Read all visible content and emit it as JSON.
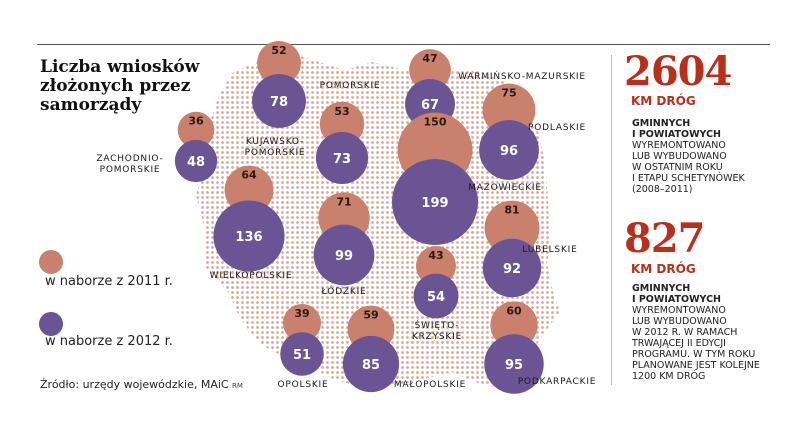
{
  "title": "Liczba wniosków\nzłożonych przez\nsamorządy",
  "colors": {
    "series_2011": "#c9806c",
    "series_2012": "#6b5494",
    "map_dots": "#d8a595",
    "accent": "#b8301c"
  },
  "legend": {
    "items": [
      {
        "label": "w naborze z 2011 r.",
        "color": "#c9806c"
      },
      {
        "label": "w naborze z 2012 r.",
        "color": "#6b5494"
      }
    ]
  },
  "source": "Źródło: urzędy wojewódzkie, MAiC",
  "credit": "RM",
  "chart_data": {
    "type": "bubble-map",
    "series": [
      {
        "name": "w naborze z 2011 r.",
        "key": "v2011"
      },
      {
        "name": "w naborze z 2012 r.",
        "key": "v2012"
      }
    ],
    "regions": [
      {
        "name": "POMORSKIE",
        "v2011": 52,
        "v2012": 78
      },
      {
        "name": "WARMIŃSKO-MAZURSKIE",
        "v2011": 47,
        "v2012": 67
      },
      {
        "name": "ZACHODNIO-\nPOMORSKIE",
        "v2011": 36,
        "v2012": 48
      },
      {
        "name": "KUJAWSKO-\nPOMORSKIE",
        "v2011": 53,
        "v2012": 73
      },
      {
        "name": "PODLASKIE",
        "v2011": 75,
        "v2012": 96
      },
      {
        "name": "MAZOWIECKIE",
        "v2011": 150,
        "v2012": 199
      },
      {
        "name": "WIELKOPOLSKIE",
        "v2011": 64,
        "v2012": 136
      },
      {
        "name": "ŁÓDZKIE",
        "v2011": 71,
        "v2012": 99
      },
      {
        "name": "LUBELSKIE",
        "v2011": 81,
        "v2012": 92
      },
      {
        "name": "ŚWIĘTO-\nKRZYSKIE",
        "v2011": 43,
        "v2012": 54
      },
      {
        "name": "OPOLSKIE",
        "v2011": 39,
        "v2012": 51
      },
      {
        "name": "MAŁOPOLSKIE",
        "v2011": 59,
        "v2012": 85
      },
      {
        "name": "PODKARPACKIE",
        "v2011": 60,
        "v2012": 95
      }
    ]
  },
  "stats": [
    {
      "value": "2604",
      "unit": "KM DRÓG",
      "heading": "GMINNYCH\nI POWIATOWYCH",
      "text": "WYREMONTOWANO\nLUB WYBUDOWANO\nW OSTATNIM ROKU\nI ETAPU SCHETYNÓWEK\n(2008–2011)"
    },
    {
      "value": "827",
      "unit": "KM DRÓG",
      "heading": "GMINNYCH\nI POWIATOWYCH",
      "text": "WYREMONTOWANO\nLUB WYBUDOWANO\nW 2012 R. W RAMACH\nTRWAJĄCEJ II EDYCJI\nPROGRAMU. W TYM ROKU\nPLANOWANE JEST KOLEJNE\n1200 KM DRÓG"
    }
  ]
}
